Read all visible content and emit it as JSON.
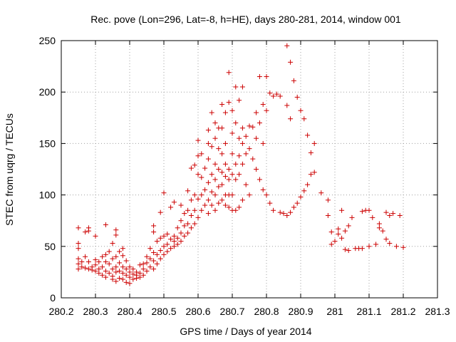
{
  "chart_data": {
    "type": "scatter",
    "title": "Rec. pove (Lon=296, Lat=-8, h=HE), days 280-281, 2014, window 001",
    "xlabel": "GPS time / Days of year 2014",
    "ylabel": "STEC from uqrg / TECUs",
    "xlim": [
      280.2,
      281.3
    ],
    "ylim": [
      0,
      250
    ],
    "xticks": [
      280.2,
      280.3,
      280.4,
      280.5,
      280.6,
      280.7,
      280.8,
      280.9,
      281,
      281.1,
      281.2,
      281.3
    ],
    "xtick_labels": [
      "280.2",
      "280.3",
      "280.4",
      "280.5",
      "280.6",
      "280.7",
      "280.8",
      "280.9",
      "281",
      "281.1",
      "281.2",
      "281.3"
    ],
    "yticks": [
      0,
      50,
      100,
      150,
      200,
      250
    ],
    "ytick_labels": [
      "0",
      "50",
      "100",
      "150",
      "200",
      "250"
    ],
    "grid": true,
    "marker": "+",
    "color": "#cc0000",
    "series": [
      {
        "name": "STEC",
        "points": [
          [
            280.25,
            68
          ],
          [
            280.25,
            53
          ],
          [
            280.25,
            48
          ],
          [
            280.25,
            38
          ],
          [
            280.25,
            33
          ],
          [
            280.25,
            28
          ],
          [
            280.26,
            30
          ],
          [
            280.26,
            35
          ],
          [
            280.27,
            64
          ],
          [
            280.27,
            40
          ],
          [
            280.27,
            29
          ],
          [
            280.28,
            68
          ],
          [
            280.28,
            65
          ],
          [
            280.28,
            35
          ],
          [
            280.28,
            28
          ],
          [
            280.29,
            30
          ],
          [
            280.29,
            27
          ],
          [
            280.3,
            60
          ],
          [
            280.3,
            37
          ],
          [
            280.3,
            32
          ],
          [
            280.3,
            26
          ],
          [
            280.31,
            35
          ],
          [
            280.31,
            28
          ],
          [
            280.31,
            24
          ],
          [
            280.32,
            40
          ],
          [
            280.32,
            30
          ],
          [
            280.32,
            22
          ],
          [
            280.33,
            71
          ],
          [
            280.33,
            42
          ],
          [
            280.33,
            35
          ],
          [
            280.33,
            26
          ],
          [
            280.33,
            20
          ],
          [
            280.34,
            45
          ],
          [
            280.34,
            33
          ],
          [
            280.34,
            24
          ],
          [
            280.35,
            53
          ],
          [
            280.35,
            38
          ],
          [
            280.35,
            28
          ],
          [
            280.35,
            21
          ],
          [
            280.35,
            18
          ],
          [
            280.36,
            66
          ],
          [
            280.36,
            61
          ],
          [
            280.36,
            40
          ],
          [
            280.36,
            30
          ],
          [
            280.36,
            25
          ],
          [
            280.36,
            16
          ],
          [
            280.37,
            45
          ],
          [
            280.37,
            34
          ],
          [
            280.37,
            26
          ],
          [
            280.37,
            19
          ],
          [
            280.38,
            48
          ],
          [
            280.38,
            41
          ],
          [
            280.38,
            30
          ],
          [
            280.38,
            24
          ],
          [
            280.38,
            18
          ],
          [
            280.39,
            36
          ],
          [
            280.39,
            28
          ],
          [
            280.39,
            22
          ],
          [
            280.39,
            15
          ],
          [
            280.4,
            30
          ],
          [
            280.4,
            25
          ],
          [
            280.4,
            20
          ],
          [
            280.4,
            14
          ],
          [
            280.41,
            28
          ],
          [
            280.41,
            23
          ],
          [
            280.41,
            18
          ],
          [
            280.42,
            22
          ],
          [
            280.42,
            19
          ],
          [
            280.42,
            25
          ],
          [
            280.43,
            32
          ],
          [
            280.43,
            24
          ],
          [
            280.43,
            20
          ],
          [
            280.44,
            33
          ],
          [
            280.44,
            28
          ],
          [
            280.44,
            22
          ],
          [
            280.45,
            40
          ],
          [
            280.45,
            34
          ],
          [
            280.45,
            26
          ],
          [
            280.46,
            48
          ],
          [
            280.46,
            38
          ],
          [
            280.46,
            30
          ],
          [
            280.47,
            70
          ],
          [
            280.47,
            64
          ],
          [
            280.47,
            44
          ],
          [
            280.47,
            36
          ],
          [
            280.47,
            28
          ],
          [
            280.48,
            55
          ],
          [
            280.48,
            42
          ],
          [
            280.48,
            33
          ],
          [
            280.49,
            83
          ],
          [
            280.49,
            58
          ],
          [
            280.49,
            46
          ],
          [
            280.49,
            38
          ],
          [
            280.5,
            102
          ],
          [
            280.5,
            60
          ],
          [
            280.5,
            50
          ],
          [
            280.5,
            42
          ],
          [
            280.51,
            62
          ],
          [
            280.51,
            52
          ],
          [
            280.51,
            45
          ],
          [
            280.52,
            88
          ],
          [
            280.52,
            57
          ],
          [
            280.52,
            48
          ],
          [
            280.53,
            93
          ],
          [
            280.53,
            60
          ],
          [
            280.53,
            55
          ],
          [
            280.53,
            50
          ],
          [
            280.54,
            68
          ],
          [
            280.54,
            58
          ],
          [
            280.54,
            52
          ],
          [
            280.55,
            90
          ],
          [
            280.55,
            75
          ],
          [
            280.55,
            63
          ],
          [
            280.55,
            55
          ],
          [
            280.56,
            82
          ],
          [
            280.56,
            70
          ],
          [
            280.56,
            60
          ],
          [
            280.57,
            104
          ],
          [
            280.57,
            85
          ],
          [
            280.57,
            72
          ],
          [
            280.57,
            63
          ],
          [
            280.58,
            126
          ],
          [
            280.58,
            95
          ],
          [
            280.58,
            80
          ],
          [
            280.58,
            68
          ],
          [
            280.59,
            129
          ],
          [
            280.59,
            100
          ],
          [
            280.59,
            85
          ],
          [
            280.59,
            72
          ],
          [
            280.6,
            153
          ],
          [
            280.6,
            138
          ],
          [
            280.6,
            120
          ],
          [
            280.6,
            96
          ],
          [
            280.6,
            78
          ],
          [
            280.61,
            140
          ],
          [
            280.61,
            117
          ],
          [
            280.61,
            100
          ],
          [
            280.61,
            85
          ],
          [
            280.62,
            126
          ],
          [
            280.62,
            105
          ],
          [
            280.62,
            90
          ],
          [
            280.63,
            163
          ],
          [
            280.63,
            150
          ],
          [
            280.63,
            135
          ],
          [
            280.63,
            112
          ],
          [
            280.63,
            95
          ],
          [
            280.63,
            82
          ],
          [
            280.64,
            180
          ],
          [
            280.64,
            147
          ],
          [
            280.64,
            120
          ],
          [
            280.64,
            103
          ],
          [
            280.64,
            90
          ],
          [
            280.65,
            170
          ],
          [
            280.65,
            155
          ],
          [
            280.65,
            130
          ],
          [
            280.65,
            115
          ],
          [
            280.65,
            100
          ],
          [
            280.65,
            85
          ],
          [
            280.66,
            165
          ],
          [
            280.66,
            145
          ],
          [
            280.66,
            125
          ],
          [
            280.66,
            108
          ],
          [
            280.66,
            92
          ],
          [
            280.67,
            188
          ],
          [
            280.67,
            165
          ],
          [
            280.67,
            140
          ],
          [
            280.67,
            122
          ],
          [
            280.67,
            110
          ],
          [
            280.67,
            95
          ],
          [
            280.68,
            180
          ],
          [
            280.68,
            150
          ],
          [
            280.68,
            130
          ],
          [
            280.68,
            118
          ],
          [
            280.68,
            100
          ],
          [
            280.68,
            90
          ],
          [
            280.69,
            219
          ],
          [
            280.69,
            190
          ],
          [
            280.69,
            125
          ],
          [
            280.69,
            115
          ],
          [
            280.69,
            100
          ],
          [
            280.69,
            88
          ],
          [
            280.7,
            182
          ],
          [
            280.7,
            160
          ],
          [
            280.7,
            140
          ],
          [
            280.7,
            120
          ],
          [
            280.7,
            100
          ],
          [
            280.7,
            85
          ],
          [
            280.71,
            205
          ],
          [
            280.71,
            170
          ],
          [
            280.71,
            130
          ],
          [
            280.71,
            115
          ],
          [
            280.71,
            85
          ],
          [
            280.72,
            192
          ],
          [
            280.72,
            155
          ],
          [
            280.72,
            138
          ],
          [
            280.72,
            120
          ],
          [
            280.72,
            88
          ],
          [
            280.73,
            205
          ],
          [
            280.73,
            165
          ],
          [
            280.73,
            150
          ],
          [
            280.73,
            130
          ],
          [
            280.73,
            95
          ],
          [
            280.74,
            157
          ],
          [
            280.74,
            140
          ],
          [
            280.74,
            110
          ],
          [
            280.75,
            167
          ],
          [
            280.75,
            145
          ],
          [
            280.75,
            100
          ],
          [
            280.76,
            166
          ],
          [
            280.76,
            135
          ],
          [
            280.77,
            180
          ],
          [
            280.77,
            155
          ],
          [
            280.77,
            125
          ],
          [
            280.78,
            215
          ],
          [
            280.78,
            170
          ],
          [
            280.78,
            115
          ],
          [
            280.79,
            188
          ],
          [
            280.79,
            150
          ],
          [
            280.79,
            105
          ],
          [
            280.8,
            215
          ],
          [
            280.8,
            182
          ],
          [
            280.8,
            100
          ],
          [
            280.81,
            199
          ],
          [
            280.81,
            92
          ],
          [
            280.82,
            196
          ],
          [
            280.82,
            85
          ],
          [
            280.83,
            198
          ],
          [
            280.84,
            196
          ],
          [
            280.84,
            83
          ],
          [
            280.85,
            82
          ],
          [
            280.86,
            245
          ],
          [
            280.86,
            187
          ],
          [
            280.86,
            80
          ],
          [
            280.87,
            229
          ],
          [
            280.87,
            174
          ],
          [
            280.87,
            83
          ],
          [
            280.88,
            211
          ],
          [
            280.88,
            88
          ],
          [
            280.89,
            195
          ],
          [
            280.89,
            92
          ],
          [
            280.9,
            182
          ],
          [
            280.9,
            98
          ],
          [
            280.91,
            174
          ],
          [
            280.91,
            104
          ],
          [
            280.92,
            158
          ],
          [
            280.92,
            110
          ],
          [
            280.93,
            141
          ],
          [
            280.93,
            120
          ],
          [
            280.94,
            150
          ],
          [
            280.94,
            122
          ],
          [
            280.96,
            102
          ],
          [
            280.98,
            95
          ],
          [
            280.98,
            80
          ],
          [
            280.99,
            64
          ],
          [
            280.99,
            52
          ],
          [
            281.0,
            55
          ],
          [
            281.01,
            67
          ],
          [
            281.01,
            62
          ],
          [
            281.02,
            85
          ],
          [
            281.02,
            58
          ],
          [
            281.03,
            65
          ],
          [
            281.03,
            47
          ],
          [
            281.04,
            70
          ],
          [
            281.04,
            46
          ],
          [
            281.05,
            78
          ],
          [
            281.06,
            48
          ],
          [
            281.07,
            48
          ],
          [
            281.08,
            84
          ],
          [
            281.08,
            48
          ],
          [
            281.09,
            85
          ],
          [
            281.1,
            85
          ],
          [
            281.1,
            50
          ],
          [
            281.11,
            78
          ],
          [
            281.12,
            52
          ],
          [
            281.13,
            72
          ],
          [
            281.13,
            68
          ],
          [
            281.14,
            65
          ],
          [
            281.15,
            83
          ],
          [
            281.15,
            57
          ],
          [
            281.16,
            80
          ],
          [
            281.16,
            53
          ],
          [
            281.17,
            82
          ],
          [
            281.18,
            50
          ],
          [
            281.19,
            80
          ],
          [
            281.2,
            49
          ]
        ]
      }
    ]
  }
}
